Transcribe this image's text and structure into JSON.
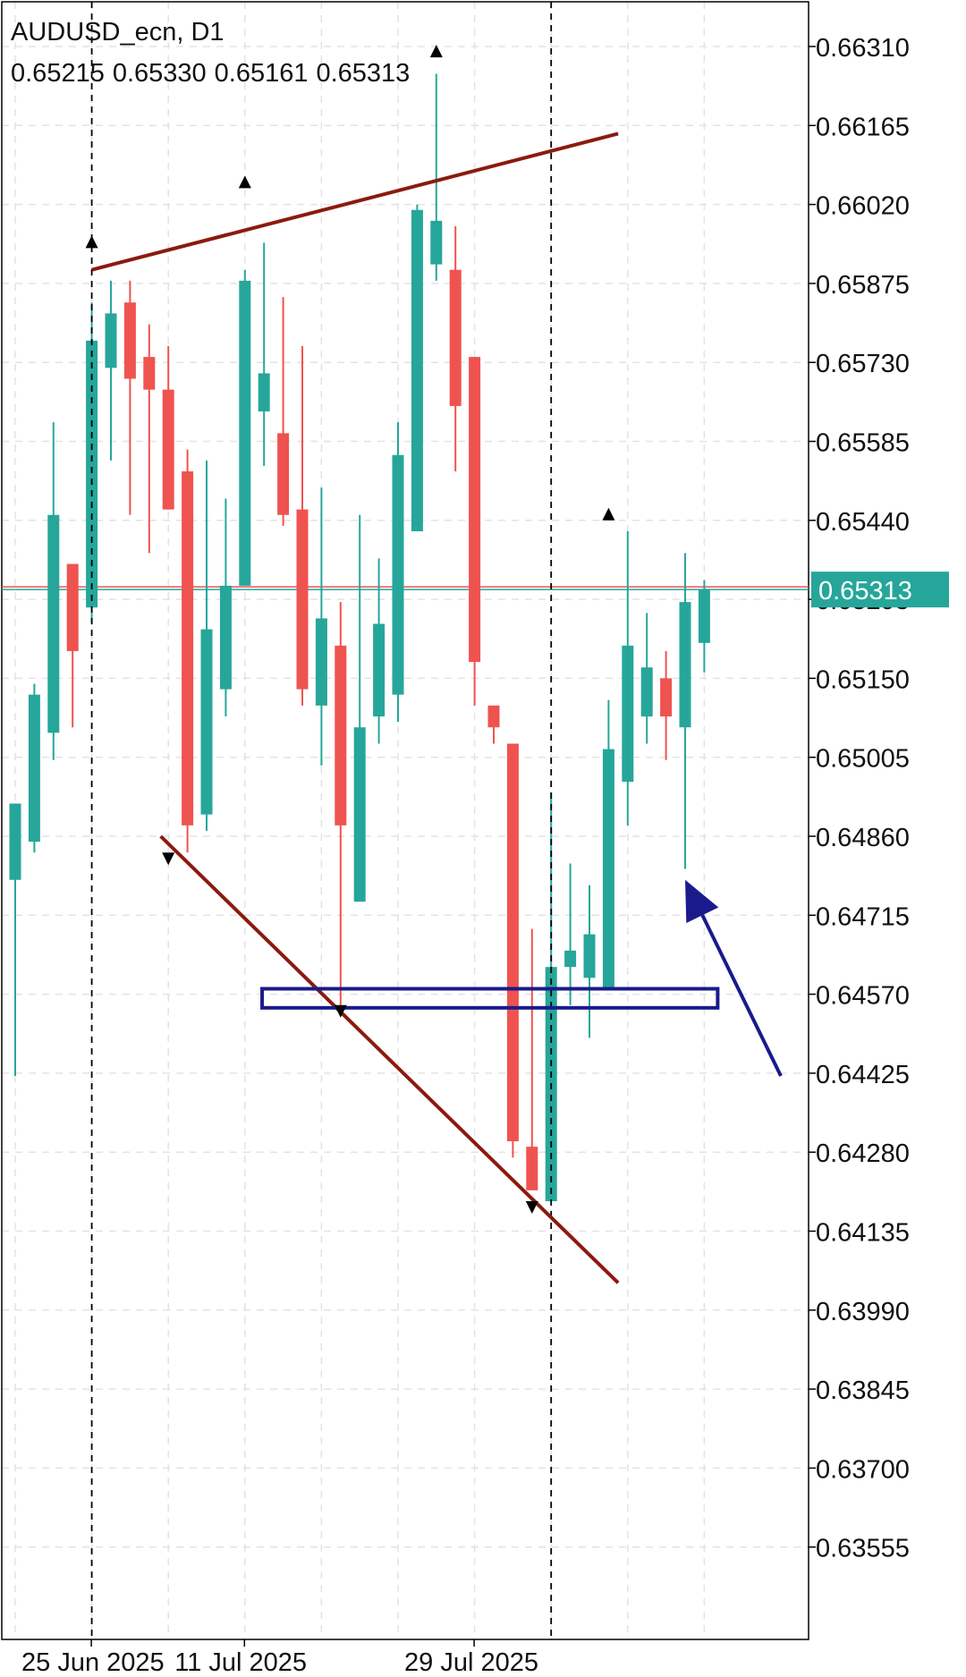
{
  "chart_data": {
    "type": "candlestick",
    "symbol": "AUDUSD_ecn",
    "timeframe": "D1",
    "ohlc_readout": [
      "0.65215",
      "0.65330",
      "0.65161",
      "0.65313"
    ],
    "current_price": "0.65313",
    "y_ticks": [
      "0.66310",
      "0.66165",
      "0.66020",
      "0.65875",
      "0.65730",
      "0.65585",
      "0.65440",
      "0.65295",
      "0.65150",
      "0.65005",
      "0.64860",
      "0.64715",
      "0.64570",
      "0.64425",
      "0.64280",
      "0.64135",
      "0.63990",
      "0.63845",
      "0.63700",
      "0.63555"
    ],
    "ylim": [
      0.634,
      0.6646
    ],
    "x_labels": [
      {
        "label": "25 Jun 2025",
        "bar": 4
      },
      {
        "label": "11 Jul 2025",
        "bar": 12
      },
      {
        "label": "29 Jul 2025",
        "bar": 24
      }
    ],
    "grid": true,
    "colors": {
      "up": "#26a69a",
      "down": "#ef5350",
      "trendline": "#8b1a10",
      "annotation": "#1a1a8c",
      "fractal": "#000000"
    },
    "candles": [
      {
        "o": 0.6478,
        "h": 0.6492,
        "l": 0.6442,
        "c": 0.6492
      },
      {
        "o": 0.6485,
        "h": 0.6514,
        "l": 0.6483,
        "c": 0.6512
      },
      {
        "o": 0.6505,
        "h": 0.6562,
        "l": 0.65,
        "c": 0.6545
      },
      {
        "o": 0.6536,
        "h": 0.6536,
        "l": 0.6506,
        "c": 0.652
      },
      {
        "o": 0.6528,
        "h": 0.6584,
        "l": 0.6525,
        "c": 0.6577
      },
      {
        "o": 0.6572,
        "h": 0.6588,
        "l": 0.6555,
        "c": 0.6582
      },
      {
        "o": 0.6584,
        "h": 0.6588,
        "l": 0.6545,
        "c": 0.657
      },
      {
        "o": 0.6574,
        "h": 0.658,
        "l": 0.6538,
        "c": 0.6568
      },
      {
        "o": 0.6568,
        "h": 0.6576,
        "l": 0.6546,
        "c": 0.6546
      },
      {
        "o": 0.6553,
        "h": 0.6557,
        "l": 0.6483,
        "c": 0.6488
      },
      {
        "o": 0.649,
        "h": 0.6555,
        "l": 0.6487,
        "c": 0.6524
      },
      {
        "o": 0.6513,
        "h": 0.6548,
        "l": 0.6508,
        "c": 0.6532
      },
      {
        "o": 0.6532,
        "h": 0.659,
        "l": 0.6532,
        "c": 0.6588
      },
      {
        "o": 0.6564,
        "h": 0.6595,
        "l": 0.6554,
        "c": 0.6571
      },
      {
        "o": 0.656,
        "h": 0.6585,
        "l": 0.6543,
        "c": 0.6545
      },
      {
        "o": 0.6546,
        "h": 0.6576,
        "l": 0.651,
        "c": 0.6513
      },
      {
        "o": 0.651,
        "h": 0.655,
        "l": 0.6499,
        "c": 0.6526
      },
      {
        "o": 0.6521,
        "h": 0.6529,
        "l": 0.6455,
        "c": 0.6488
      },
      {
        "o": 0.6474,
        "h": 0.6545,
        "l": 0.6474,
        "c": 0.6506
      },
      {
        "o": 0.6508,
        "h": 0.6537,
        "l": 0.6503,
        "c": 0.6525
      },
      {
        "o": 0.6512,
        "h": 0.6562,
        "l": 0.6507,
        "c": 0.6556
      },
      {
        "o": 0.6542,
        "h": 0.6602,
        "l": 0.6542,
        "c": 0.6601
      },
      {
        "o": 0.6591,
        "h": 0.6626,
        "l": 0.6588,
        "c": 0.6599
      },
      {
        "o": 0.659,
        "h": 0.6598,
        "l": 0.6553,
        "c": 0.6565
      },
      {
        "o": 0.6574,
        "h": 0.6574,
        "l": 0.651,
        "c": 0.6518
      },
      {
        "o": 0.651,
        "h": 0.651,
        "l": 0.6503,
        "c": 0.6506
      },
      {
        "o": 0.6503,
        "h": 0.6503,
        "l": 0.6427,
        "c": 0.643
      },
      {
        "o": 0.6429,
        "h": 0.6469,
        "l": 0.6423,
        "c": 0.6421
      },
      {
        "o": 0.6419,
        "h": 0.6494,
        "l": 0.6421,
        "c": 0.6462
      },
      {
        "o": 0.6462,
        "h": 0.6481,
        "l": 0.6455,
        "c": 0.6465
      },
      {
        "o": 0.646,
        "h": 0.6477,
        "l": 0.6449,
        "c": 0.6468
      },
      {
        "o": 0.6458,
        "h": 0.6511,
        "l": 0.6458,
        "c": 0.6502
      },
      {
        "o": 0.6496,
        "h": 0.6542,
        "l": 0.6488,
        "c": 0.6521
      },
      {
        "o": 0.6508,
        "h": 0.6527,
        "l": 0.6503,
        "c": 0.6517
      },
      {
        "o": 0.6515,
        "h": 0.652,
        "l": 0.65,
        "c": 0.6508
      },
      {
        "o": 0.6506,
        "h": 0.6538,
        "l": 0.648,
        "c": 0.6529
      },
      {
        "o": 0.65215,
        "h": 0.6533,
        "l": 0.65161,
        "c": 0.65313
      }
    ],
    "fractals": [
      {
        "bar": 4,
        "price": 0.6594,
        "dir": "up"
      },
      {
        "bar": 12,
        "price": 0.6605,
        "dir": "up"
      },
      {
        "bar": 22,
        "price": 0.6629,
        "dir": "up"
      },
      {
        "bar": 31,
        "price": 0.6544,
        "dir": "up"
      },
      {
        "bar": 8,
        "price": 0.6483,
        "dir": "down"
      },
      {
        "bar": 17,
        "price": 0.6455,
        "dir": "down"
      },
      {
        "bar": 27,
        "price": 0.6419,
        "dir": "down"
      }
    ],
    "trendlines": [
      {
        "from": {
          "bar": 4,
          "price": 0.659
        },
        "to": {
          "bar": 31.5,
          "price": 0.6615
        }
      },
      {
        "from": {
          "bar": 7.6,
          "price": 0.6486
        },
        "to": {
          "bar": 31.5,
          "price": 0.6404
        }
      }
    ],
    "zone": {
      "bar_from": 12.9,
      "bar_to": 36.7,
      "price_top": 0.6458,
      "price_bottom": 0.64545
    },
    "arrow": {
      "from": {
        "bar": 40,
        "price": 0.6442
      },
      "to": {
        "bar": 35,
        "price": 0.6478
      }
    },
    "period_separators": [
      4,
      28
    ]
  }
}
